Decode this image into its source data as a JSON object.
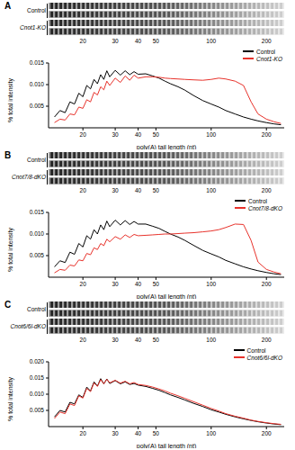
{
  "chart_data": [
    {
      "type": "line",
      "title": "A",
      "gel_lanes": [
        "Control",
        "Cnot1-KO"
      ],
      "gel_ticks": [
        20,
        30,
        40,
        50,
        100,
        200
      ],
      "x_label": "poly(A) tail length (nt)",
      "y_label": "% total intensity",
      "log": "x",
      "legend": "top right",
      "xlim": [
        13,
        250
      ],
      "xticks": [
        20,
        30,
        40,
        50,
        100,
        200
      ],
      "ylim": [
        0,
        0.015
      ],
      "yticks": [
        {
          "value": 0.005,
          "label": "0.005"
        },
        {
          "value": 0.01,
          "label": "0.010"
        },
        {
          "value": 0.015,
          "label": "0.015"
        }
      ],
      "x": [
        14,
        15,
        16,
        17,
        18,
        19,
        20,
        21,
        22,
        23,
        24,
        25,
        26,
        27,
        28,
        30,
        32,
        34,
        36,
        38,
        40,
        44,
        48,
        52,
        56,
        60,
        66,
        72,
        80,
        90,
        100,
        110,
        120,
        135,
        150,
        165,
        180,
        200,
        220,
        240
      ],
      "series": [
        {
          "name": "Control",
          "color": "#000000",
          "values": [
            0.0025,
            0.004,
            0.0035,
            0.006,
            0.0055,
            0.008,
            0.0072,
            0.0098,
            0.009,
            0.0112,
            0.0102,
            0.0123,
            0.0112,
            0.0132,
            0.0118,
            0.0133,
            0.0122,
            0.0132,
            0.0123,
            0.013,
            0.0124,
            0.0125,
            0.012,
            0.0115,
            0.0108,
            0.0102,
            0.0095,
            0.0087,
            0.0075,
            0.0063,
            0.0055,
            0.0048,
            0.004,
            0.0032,
            0.0025,
            0.002,
            0.0016,
            0.0012,
            0.0009,
            0.0007
          ]
        },
        {
          "name": "Cnot1-KO",
          "color": "#e8322b",
          "values": [
            0.0012,
            0.002,
            0.0018,
            0.0032,
            0.003,
            0.0048,
            0.0045,
            0.0065,
            0.006,
            0.0082,
            0.0076,
            0.0095,
            0.0088,
            0.0108,
            0.0098,
            0.0115,
            0.0105,
            0.012,
            0.011,
            0.0122,
            0.0115,
            0.0118,
            0.0118,
            0.0117,
            0.0115,
            0.0114,
            0.0113,
            0.0112,
            0.0111,
            0.011,
            0.0112,
            0.0115,
            0.0113,
            0.0108,
            0.0098,
            0.006,
            0.0032,
            0.002,
            0.0014,
            0.001
          ]
        }
      ]
    },
    {
      "type": "line",
      "title": "B",
      "gel_lanes": [
        "Control",
        "Cnot7/8-dKO"
      ],
      "gel_ticks": [
        20,
        30,
        40,
        50,
        100,
        200
      ],
      "x_label": "poly(A) tail length (nt)",
      "y_label": "% total intensity",
      "log": "x",
      "legend": "top right",
      "xlim": [
        13,
        250
      ],
      "xticks": [
        20,
        30,
        40,
        50,
        100,
        200
      ],
      "ylim": [
        0,
        0.015
      ],
      "yticks": [
        {
          "value": 0.005,
          "label": "0.005"
        },
        {
          "value": 0.01,
          "label": "0.010"
        },
        {
          "value": 0.015,
          "label": "0.015"
        }
      ],
      "x": [
        14,
        15,
        16,
        17,
        18,
        19,
        20,
        21,
        22,
        23,
        24,
        25,
        26,
        27,
        28,
        30,
        32,
        34,
        36,
        38,
        40,
        44,
        48,
        52,
        56,
        60,
        66,
        72,
        80,
        90,
        100,
        110,
        120,
        135,
        150,
        165,
        180,
        200,
        220,
        240
      ],
      "series": [
        {
          "name": "Control",
          "color": "#000000",
          "values": [
            0.0024,
            0.0038,
            0.0034,
            0.0058,
            0.0053,
            0.0078,
            0.007,
            0.0096,
            0.0088,
            0.011,
            0.01,
            0.0121,
            0.011,
            0.013,
            0.0117,
            0.0132,
            0.0121,
            0.0131,
            0.0122,
            0.0129,
            0.0123,
            0.0123,
            0.0118,
            0.0113,
            0.0106,
            0.01,
            0.0093,
            0.0085,
            0.0074,
            0.0062,
            0.0054,
            0.0047,
            0.0039,
            0.0031,
            0.0024,
            0.0019,
            0.0015,
            0.0011,
            0.0008,
            0.0006
          ]
        },
        {
          "name": "Cnot7/8-dKO",
          "color": "#e8322b",
          "values": [
            0.001,
            0.0018,
            0.0016,
            0.0028,
            0.0026,
            0.004,
            0.0038,
            0.0055,
            0.0052,
            0.0068,
            0.0064,
            0.0078,
            0.0073,
            0.0088,
            0.0082,
            0.0094,
            0.0088,
            0.0098,
            0.0092,
            0.0099,
            0.0096,
            0.0097,
            0.0098,
            0.0099,
            0.01,
            0.01,
            0.0101,
            0.0102,
            0.0103,
            0.0105,
            0.0107,
            0.011,
            0.0115,
            0.0123,
            0.0122,
            0.0085,
            0.0035,
            0.0018,
            0.0012,
            0.0008
          ]
        }
      ]
    },
    {
      "type": "line",
      "title": "C",
      "gel_lanes": [
        "Control",
        "Cnot6/6l-dKO"
      ],
      "gel_ticks": [
        20,
        30,
        40,
        50,
        100,
        200
      ],
      "x_label": "poly(A) tail length (nt)",
      "y_label": "% total intensity",
      "log": "x",
      "legend": "top right",
      "xlim": [
        13,
        250
      ],
      "xticks": [
        20,
        30,
        40,
        50,
        100,
        200
      ],
      "ylim": [
        0,
        0.02
      ],
      "yticks": [
        {
          "value": 0.005,
          "label": "0.005"
        },
        {
          "value": 0.01,
          "label": "0.010"
        },
        {
          "value": 0.015,
          "label": "0.015"
        },
        {
          "value": 0.02,
          "label": "0.020"
        }
      ],
      "x": [
        14,
        15,
        16,
        17,
        18,
        19,
        20,
        21,
        22,
        23,
        24,
        25,
        26,
        27,
        28,
        30,
        32,
        34,
        36,
        38,
        40,
        44,
        48,
        52,
        56,
        60,
        66,
        72,
        80,
        90,
        100,
        110,
        120,
        135,
        150,
        165,
        180,
        200,
        220,
        240
      ],
      "series": [
        {
          "name": "Control",
          "color": "#000000",
          "values": [
            0.003,
            0.005,
            0.0045,
            0.0075,
            0.007,
            0.0098,
            0.009,
            0.0122,
            0.011,
            0.0138,
            0.0125,
            0.0148,
            0.0132,
            0.0147,
            0.0133,
            0.0142,
            0.0132,
            0.0138,
            0.013,
            0.0133,
            0.0128,
            0.0124,
            0.0118,
            0.0112,
            0.0105,
            0.0098,
            0.009,
            0.0082,
            0.0072,
            0.0062,
            0.0052,
            0.0045,
            0.0038,
            0.003,
            0.0024,
            0.0019,
            0.0015,
            0.0011,
            0.0008,
            0.0006
          ]
        },
        {
          "name": "Cnot6/6l-dKO",
          "color": "#e8322b",
          "values": [
            0.0025,
            0.0045,
            0.004,
            0.007,
            0.0065,
            0.0095,
            0.0088,
            0.0118,
            0.0108,
            0.0135,
            0.0124,
            0.0145,
            0.0132,
            0.0146,
            0.0135,
            0.0143,
            0.0134,
            0.014,
            0.0132,
            0.0136,
            0.013,
            0.0127,
            0.0122,
            0.0116,
            0.011,
            0.0103,
            0.0095,
            0.0087,
            0.0077,
            0.0066,
            0.0056,
            0.0048,
            0.004,
            0.0032,
            0.0026,
            0.002,
            0.0016,
            0.0012,
            0.0009,
            0.0007
          ]
        }
      ]
    }
  ]
}
